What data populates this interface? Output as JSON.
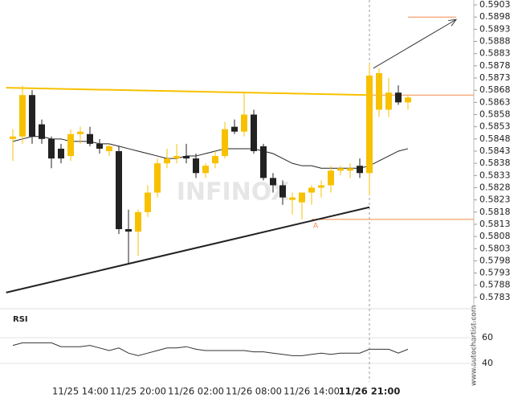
{
  "chart_data": {
    "type": "candlestick",
    "watermark": "INFINOX",
    "source": "www.autochartist.com",
    "categories": [
      null,
      null,
      null,
      null,
      null,
      null,
      null,
      "11/25 14:00",
      null,
      null,
      null,
      null,
      null,
      "11/25 20:00",
      null,
      null,
      null,
      null,
      null,
      "11/26 02:00",
      null,
      null,
      null,
      null,
      null,
      "11/26 08:00",
      null,
      null,
      null,
      null,
      null,
      "11/26 14:00",
      null,
      null,
      null,
      null,
      null,
      "11/26 21:00",
      null,
      null,
      null,
      null
    ],
    "highlight_category": 37,
    "open": [
      0.5848,
      0.5849,
      0.5866,
      0.5854,
      0.5848,
      0.5844,
      0.5841,
      0.585,
      0.585,
      0.5846,
      0.5843,
      0.5843,
      0.5811,
      0.581,
      0.5818,
      0.5826,
      0.5838,
      0.584,
      0.5841,
      0.584,
      0.5834,
      0.5838,
      0.5841,
      0.5853,
      0.5851,
      0.5858,
      0.5845,
      0.5832,
      0.5829,
      0.5823,
      0.5822,
      0.5826,
      0.5828,
      0.5829,
      0.5835,
      0.5835,
      0.5837,
      0.5834,
      0.586,
      0.586,
      0.5867,
      0.5863
    ],
    "high": [
      0.5852,
      0.587,
      0.5868,
      0.5856,
      0.5849,
      0.5846,
      0.5852,
      0.5853,
      0.5853,
      0.5848,
      0.5846,
      0.5845,
      0.5819,
      0.5819,
      0.5829,
      0.584,
      0.5844,
      0.5846,
      0.5846,
      0.5842,
      0.5838,
      0.5843,
      0.5855,
      0.5856,
      0.5867,
      0.586,
      0.5846,
      0.5834,
      0.5831,
      0.5826,
      0.5826,
      0.5829,
      0.5831,
      0.5837,
      0.5837,
      0.5838,
      0.584,
      0.5879,
      0.5877,
      0.5873,
      0.587,
      0.5866
    ],
    "low": [
      0.5839,
      0.5846,
      0.5846,
      0.5846,
      0.5836,
      0.5838,
      0.5839,
      0.5846,
      0.5845,
      0.5842,
      0.5841,
      0.5809,
      0.5797,
      0.58,
      0.5816,
      0.5824,
      0.5836,
      0.5838,
      0.5838,
      0.5832,
      0.5832,
      0.5836,
      0.584,
      0.585,
      0.5849,
      0.5842,
      0.5831,
      0.5826,
      0.5821,
      0.5817,
      0.5815,
      0.5821,
      0.5824,
      0.5826,
      0.5833,
      0.5832,
      0.5832,
      0.5825,
      0.5857,
      0.5857,
      0.5862,
      0.586
    ],
    "close": [
      0.5849,
      0.5866,
      0.5849,
      0.5848,
      0.584,
      0.584,
      0.585,
      0.5851,
      0.5846,
      0.5844,
      0.5845,
      0.5811,
      0.581,
      0.5818,
      0.5826,
      0.5838,
      0.584,
      0.5841,
      0.584,
      0.5834,
      0.5837,
      0.5841,
      0.5852,
      0.5851,
      0.5858,
      0.5843,
      0.5832,
      0.5829,
      0.5824,
      0.5824,
      0.5826,
      0.5828,
      0.5829,
      0.5835,
      0.5836,
      0.5836,
      0.5834,
      0.5874,
      0.5875,
      0.5867,
      0.5863,
      0.5865
    ],
    "moving_average": [
      0.5847,
      0.5848,
      0.5849,
      0.5849,
      0.5848,
      0.5848,
      0.5847,
      0.5847,
      0.5847,
      0.5846,
      0.5846,
      0.5845,
      0.5844,
      0.5843,
      0.5842,
      0.5841,
      0.584,
      0.584,
      0.5841,
      0.5841,
      0.5842,
      0.5843,
      0.5844,
      0.5844,
      0.5844,
      0.5844,
      0.5843,
      0.5842,
      0.584,
      0.5838,
      0.5837,
      0.5837,
      0.5836,
      0.5836,
      0.5836,
      0.5836,
      0.5836,
      0.5837,
      0.5839,
      0.5841,
      0.5843,
      0.5844
    ],
    "up_color": "#f7c100",
    "down_color": "#222222",
    "ma_color": "#222222",
    "ylim": [
      0.578,
      0.5905
    ],
    "yticks": [
      0.5903,
      0.5898,
      0.5893,
      0.5888,
      0.5883,
      0.5878,
      0.5873,
      0.5868,
      0.5863,
      0.5858,
      0.5853,
      0.5848,
      0.5843,
      0.5838,
      0.5833,
      0.5828,
      0.5823,
      0.5818,
      0.5813,
      0.5808,
      0.5803,
      0.5798,
      0.5793,
      0.5788,
      0.5783
    ],
    "trendlines": [
      {
        "x": [
          -0.7,
          37
        ],
        "y": [
          0.5869,
          0.5866
        ],
        "color": "#f7c100"
      },
      {
        "x": [
          -0.7,
          37
        ],
        "y": [
          0.5785,
          0.582
        ],
        "color": "#222222"
      }
    ],
    "levels": [
      {
        "value": 0.5898,
        "x": [
          41,
          46
        ],
        "color": "#f08a4b"
      },
      {
        "value": 0.5866,
        "x": [
          37,
          48
        ],
        "color": "#f08a4b"
      },
      {
        "value": 0.5815,
        "x": [
          31,
          48
        ],
        "color": "#f08a4b",
        "label": "A"
      }
    ],
    "arrow": {
      "x": [
        37.4,
        46
      ],
      "y": [
        0.5877,
        0.5897
      ],
      "color": "#333333"
    },
    "rsi": {
      "title": "RSI",
      "values": [
        54,
        56,
        56,
        56,
        56,
        53,
        53,
        53,
        54,
        52,
        50,
        52,
        48,
        46,
        48,
        50,
        52,
        52,
        53,
        51,
        50,
        50,
        50,
        50,
        50,
        49,
        49,
        48,
        47,
        46,
        46,
        47,
        48,
        47,
        48,
        48,
        48,
        51,
        51,
        51,
        48,
        51
      ],
      "ylim": [
        30,
        70
      ],
      "yticks": [
        60,
        40
      ],
      "color": "#333333"
    }
  }
}
